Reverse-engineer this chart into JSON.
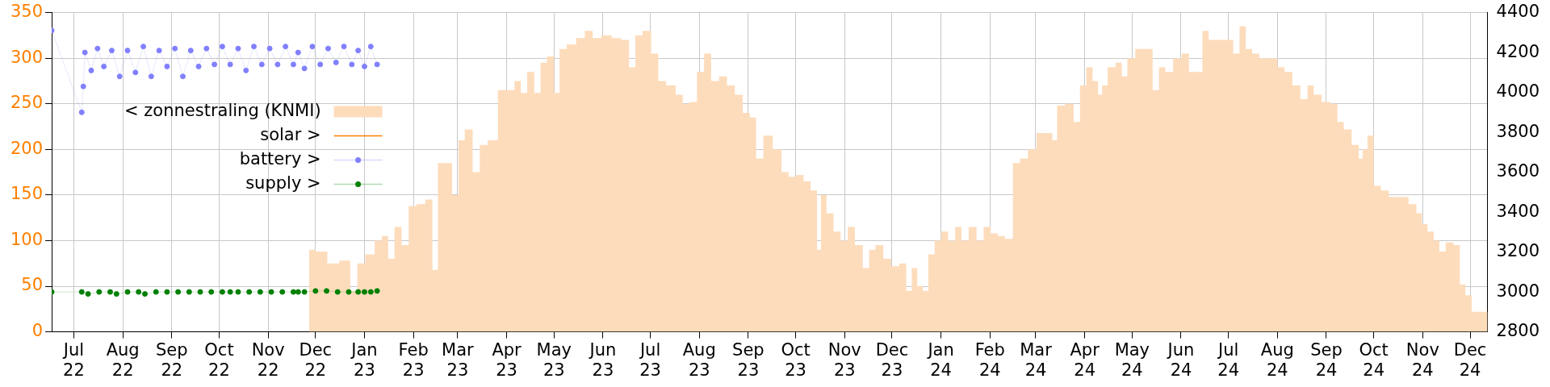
{
  "chart_data": {
    "type": "line",
    "xlim": [
      "2022-06-17",
      "2024-12-12"
    ],
    "xticks": [
      {
        "value": "2022-07-01",
        "label": "Jul 22"
      },
      {
        "value": "2022-08-01",
        "label": "Aug 22"
      },
      {
        "value": "2022-09-01",
        "label": "Sep 22"
      },
      {
        "value": "2022-10-01",
        "label": "Oct 22"
      },
      {
        "value": "2022-11-01",
        "label": "Nov 22"
      },
      {
        "value": "2022-12-01",
        "label": "Dec 22"
      },
      {
        "value": "2023-01-01",
        "label": "Jan 23"
      },
      {
        "value": "2023-02-01",
        "label": "Feb 23"
      },
      {
        "value": "2023-03-01",
        "label": "Mar 23"
      },
      {
        "value": "2023-04-01",
        "label": "Apr 23"
      },
      {
        "value": "2023-05-01",
        "label": "May 23"
      },
      {
        "value": "2023-06-01",
        "label": "Jun 23"
      },
      {
        "value": "2023-07-01",
        "label": "Jul 23"
      },
      {
        "value": "2023-08-01",
        "label": "Aug 23"
      },
      {
        "value": "2023-09-01",
        "label": "Sep 23"
      },
      {
        "value": "2023-10-01",
        "label": "Oct 23"
      },
      {
        "value": "2023-11-01",
        "label": "Nov 23"
      },
      {
        "value": "2023-12-01",
        "label": "Dec 23"
      },
      {
        "value": "2024-01-01",
        "label": "Jan 24"
      },
      {
        "value": "2024-02-01",
        "label": "Feb 24"
      },
      {
        "value": "2024-03-01",
        "label": "Mar 24"
      },
      {
        "value": "2024-04-01",
        "label": "Apr 24"
      },
      {
        "value": "2024-05-01",
        "label": "May 24"
      },
      {
        "value": "2024-06-01",
        "label": "Jun 24"
      },
      {
        "value": "2024-07-01",
        "label": "Jul 24"
      },
      {
        "value": "2024-08-01",
        "label": "Aug 24"
      },
      {
        "value": "2024-09-01",
        "label": "Sep 24"
      },
      {
        "value": "2024-10-01",
        "label": "Oct 24"
      },
      {
        "value": "2024-11-01",
        "label": "Nov 24"
      },
      {
        "value": "2024-12-01",
        "label": "Dec 24"
      }
    ],
    "ylim": [
      0,
      350
    ],
    "yticks": [
      0,
      50,
      100,
      150,
      200,
      250,
      300,
      350
    ],
    "y2lim": [
      2800,
      4400
    ],
    "y2ticks": [
      2800,
      3000,
      3200,
      3400,
      3600,
      3800,
      4000,
      4200,
      4400
    ],
    "grid": true,
    "legend": "left",
    "series": [
      {
        "name": "< zonnestraling (KNMI)",
        "type": "area",
        "color": "#fddcbc",
        "x": [
          "2022-11-27",
          "2022-12-05",
          "2022-12-12",
          "2022-12-20",
          "2022-12-26",
          "2022-12-29",
          "2023-01-05",
          "2023-01-10",
          "2023-01-14",
          "2023-01-18",
          "2023-01-22",
          "2023-01-27",
          "2023-01-31",
          "2023-02-06",
          "2023-02-11",
          "2023-02-15",
          "2023-02-18",
          "2023-02-23",
          "2023-02-28",
          "2023-03-03",
          "2023-03-08",
          "2023-03-13",
          "2023-03-17",
          "2023-03-23",
          "2023-03-30",
          "2023-04-04",
          "2023-04-08",
          "2023-04-12",
          "2023-04-16",
          "2023-04-21",
          "2023-04-24",
          "2023-04-29",
          "2023-05-03",
          "2023-05-06",
          "2023-05-12",
          "2023-05-18",
          "2023-05-23",
          "2023-05-28",
          "2023-06-03",
          "2023-06-10",
          "2023-06-15",
          "2023-06-20",
          "2023-06-23",
          "2023-06-29",
          "2023-07-04",
          "2023-07-08",
          "2023-07-14",
          "2023-07-20",
          "2023-07-23",
          "2023-07-28",
          "2023-08-02",
          "2023-08-06",
          "2023-08-11",
          "2023-08-16",
          "2023-08-21",
          "2023-08-26",
          "2023-08-31",
          "2023-09-04",
          "2023-09-08",
          "2023-09-13",
          "2023-09-20",
          "2023-09-24",
          "2023-09-29",
          "2023-10-04",
          "2023-10-08",
          "2023-10-13",
          "2023-10-16",
          "2023-10-18",
          "2023-10-23",
          "2023-10-27",
          "2023-11-01",
          "2023-11-05",
          "2023-11-10",
          "2023-11-15",
          "2023-11-18",
          "2023-11-23",
          "2023-11-28",
          "2023-12-03",
          "2023-12-08",
          "2023-12-12",
          "2023-12-15",
          "2023-12-19",
          "2023-12-22",
          "2023-12-26",
          "2023-12-30",
          "2024-01-03",
          "2024-01-08",
          "2024-01-12",
          "2024-01-16",
          "2024-01-21",
          "2024-01-26",
          "2024-01-30",
          "2024-02-04",
          "2024-02-08",
          "2024-02-13",
          "2024-02-18",
          "2024-02-22",
          "2024-02-28",
          "2024-03-04",
          "2024-03-10",
          "2024-03-13",
          "2024-03-16",
          "2024-03-23",
          "2024-03-27",
          "2024-03-31",
          "2024-04-04",
          "2024-04-08",
          "2024-04-11",
          "2024-04-13",
          "2024-04-18",
          "2024-04-23",
          "2024-04-26",
          "2024-04-30",
          "2024-05-06",
          "2024-05-12",
          "2024-05-16",
          "2024-05-20",
          "2024-05-24",
          "2024-05-30",
          "2024-06-04",
          "2024-06-08",
          "2024-06-13",
          "2024-06-16",
          "2024-06-21",
          "2024-06-26",
          "2024-07-02",
          "2024-07-06",
          "2024-07-10",
          "2024-07-14",
          "2024-07-18",
          "2024-07-23",
          "2024-07-30",
          "2024-08-03",
          "2024-08-08",
          "2024-08-13",
          "2024-08-18",
          "2024-08-22",
          "2024-08-26",
          "2024-09-01",
          "2024-09-06",
          "2024-09-10",
          "2024-09-14",
          "2024-09-20",
          "2024-09-23",
          "2024-09-25",
          "2024-09-29",
          "2024-10-03",
          "2024-10-08",
          "2024-10-13",
          "2024-10-20",
          "2024-10-26",
          "2024-10-30",
          "2024-11-02",
          "2024-11-06",
          "2024-11-10",
          "2024-11-13",
          "2024-11-18",
          "2024-11-23",
          "2024-11-26",
          "2024-11-30",
          "2024-12-04",
          "2024-12-12"
        ],
        "values": [
          90,
          88,
          75,
          78,
          45,
          75,
          85,
          100,
          105,
          80,
          115,
          95,
          138,
          140,
          145,
          68,
          185,
          185,
          150,
          210,
          222,
          175,
          205,
          210,
          265,
          265,
          275,
          262,
          285,
          262,
          295,
          302,
          262,
          310,
          315,
          322,
          330,
          322,
          325,
          322,
          320,
          290,
          325,
          330,
          305,
          275,
          270,
          260,
          250,
          252,
          285,
          305,
          275,
          280,
          270,
          260,
          240,
          235,
          190,
          215,
          200,
          175,
          170,
          172,
          165,
          155,
          90,
          150,
          130,
          110,
          100,
          115,
          95,
          70,
          90,
          95,
          80,
          72,
          75,
          45,
          70,
          50,
          45,
          85,
          100,
          110,
          100,
          115,
          100,
          115,
          100,
          115,
          108,
          105,
          102,
          185,
          190,
          200,
          218,
          218,
          210,
          248,
          250,
          230,
          270,
          290,
          275,
          260,
          270,
          290,
          295,
          280,
          300,
          310,
          310,
          265,
          290,
          285,
          300,
          305,
          285,
          285,
          330,
          320,
          320,
          320,
          305,
          335,
          310,
          305,
          300,
          300,
          290,
          285,
          270,
          255,
          270,
          260,
          252,
          250,
          230,
          222,
          205,
          190,
          200,
          215,
          160,
          155,
          148,
          148,
          140,
          130,
          118,
          110,
          100,
          88,
          98,
          95,
          52,
          40,
          22,
          22
        ]
      },
      {
        "name": "solar >",
        "type": "line",
        "axis": "y2",
        "color": "#ff8000",
        "marker": "none"
      },
      {
        "name": "battery >",
        "type": "line",
        "axis": "y2",
        "color": "#8080ff",
        "marker": "circle",
        "x": [
          "2022-06-17",
          "2022-07-06",
          "2022-07-07",
          "2022-07-08",
          "2022-07-12",
          "2022-07-16",
          "2022-07-20",
          "2022-07-25",
          "2022-07-30",
          "2022-08-04",
          "2022-08-09",
          "2022-08-14",
          "2022-08-19",
          "2022-08-24",
          "2022-08-29",
          "2022-09-03",
          "2022-09-08",
          "2022-09-13",
          "2022-09-18",
          "2022-09-23",
          "2022-09-28",
          "2022-10-03",
          "2022-10-08",
          "2022-10-13",
          "2022-10-18",
          "2022-10-23",
          "2022-10-28",
          "2022-11-02",
          "2022-11-07",
          "2022-11-12",
          "2022-11-17",
          "2022-11-20",
          "2022-11-24",
          "2022-11-29",
          "2022-12-04",
          "2022-12-09",
          "2022-12-14",
          "2022-12-19",
          "2022-12-24",
          "2022-12-28",
          "2023-01-01",
          "2023-01-05",
          "2023-01-09"
        ],
        "values": [
          4310,
          3900,
          4030,
          4200,
          4110,
          4220,
          4130,
          4210,
          4080,
          4210,
          4100,
          4230,
          4080,
          4210,
          4130,
          4220,
          4080,
          4210,
          4130,
          4220,
          4140,
          4230,
          4140,
          4220,
          4110,
          4230,
          4140,
          4220,
          4140,
          4230,
          4140,
          4200,
          4120,
          4230,
          4140,
          4220,
          4150,
          4230,
          4140,
          4210,
          4130,
          4230,
          4140
        ]
      },
      {
        "name": "supply >",
        "type": "line",
        "axis": "y2",
        "color": "#008000",
        "marker": "circle",
        "x": [
          "2022-06-17",
          "2022-07-06",
          "2022-07-10",
          "2022-07-17",
          "2022-07-24",
          "2022-07-28",
          "2022-08-04",
          "2022-08-11",
          "2022-08-15",
          "2022-08-22",
          "2022-08-29",
          "2022-09-05",
          "2022-09-12",
          "2022-09-19",
          "2022-09-26",
          "2022-10-03",
          "2022-10-08",
          "2022-10-13",
          "2022-10-20",
          "2022-10-27",
          "2022-11-03",
          "2022-11-10",
          "2022-11-17",
          "2022-11-20",
          "2022-11-24",
          "2022-12-01",
          "2022-12-08",
          "2022-12-15",
          "2022-12-22",
          "2022-12-28",
          "2023-01-01",
          "2023-01-05",
          "2023-01-09"
        ],
        "values": [
          3000,
          3000,
          2990,
          3000,
          3000,
          2990,
          3000,
          3000,
          2990,
          3000,
          3000,
          3000,
          3000,
          3000,
          3000,
          3000,
          3000,
          3000,
          3000,
          3000,
          3000,
          3000,
          3000,
          3000,
          3000,
          3005,
          3005,
          3000,
          3000,
          3000,
          3000,
          3000,
          3005
        ]
      }
    ]
  }
}
